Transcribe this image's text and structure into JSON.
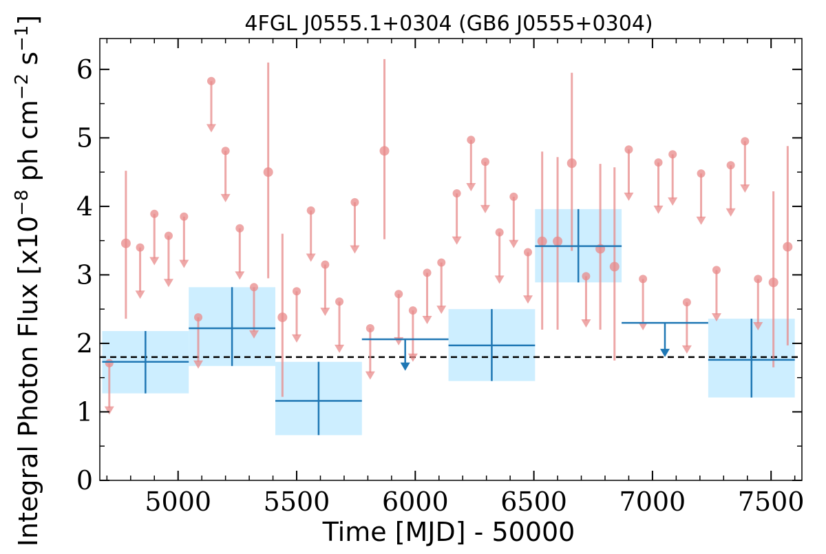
{
  "chart_data": {
    "type": "scatter",
    "title": "4FGL J0555.1+0304 (GB6 J0555+0304)",
    "xlabel": "Time [MJD] - 50000",
    "ylabel_main": "Integral Photon Flux [x10",
    "ylabel_exp1": "−8",
    "ylabel_mid": " ph cm",
    "ylabel_exp2": "−2",
    "ylabel_s": " s",
    "ylabel_exp3": "−1",
    "ylabel_end": "]",
    "xlim": [
      4670,
      7630
    ],
    "ylim": [
      0,
      6.45
    ],
    "xticks": [
      5000,
      5500,
      6000,
      6500,
      7000,
      7500
    ],
    "yticks": [
      0,
      1,
      2,
      3,
      4,
      5,
      6
    ],
    "reference_line": 1.8,
    "colors": {
      "short_bin": "#e88a8a",
      "long_bin": "#1f77b4",
      "long_bin_fill": "#cdeeff",
      "reference_line": "#000000"
    },
    "long_bins": [
      {
        "x0": 4680,
        "x1": 5045,
        "y": 1.73,
        "ylo": 1.27,
        "yhi": 2.18,
        "upper_limit": false
      },
      {
        "x0": 5045,
        "x1": 5410,
        "y": 2.22,
        "ylo": 1.67,
        "yhi": 2.82,
        "upper_limit": false
      },
      {
        "x0": 5410,
        "x1": 5775,
        "y": 1.16,
        "ylo": 0.66,
        "yhi": 1.73,
        "upper_limit": false
      },
      {
        "x0": 5775,
        "x1": 6140,
        "y": 2.06,
        "upper_limit": true,
        "arrow_to": 1.6
      },
      {
        "x0": 6140,
        "x1": 6505,
        "y": 1.97,
        "ylo": 1.45,
        "yhi": 2.5,
        "upper_limit": false
      },
      {
        "x0": 6505,
        "x1": 6870,
        "y": 3.42,
        "ylo": 2.89,
        "yhi": 3.96,
        "upper_limit": false
      },
      {
        "x0": 6870,
        "x1": 7235,
        "y": 2.3,
        "upper_limit": true,
        "arrow_to": 1.8
      },
      {
        "x0": 7235,
        "x1": 7600,
        "y": 1.76,
        "ylo": 1.21,
        "yhi": 2.36,
        "upper_limit": false
      }
    ],
    "short_bins": [
      {
        "x": 4710,
        "y": 1.71,
        "upper_limit": true
      },
      {
        "x": 4780,
        "y": 3.46,
        "ylo": 2.36,
        "yhi": 4.52,
        "upper_limit": false
      },
      {
        "x": 4840,
        "y": 3.4,
        "upper_limit": true
      },
      {
        "x": 4900,
        "y": 3.89,
        "upper_limit": true
      },
      {
        "x": 4960,
        "y": 3.57,
        "upper_limit": true
      },
      {
        "x": 5025,
        "y": 3.85,
        "upper_limit": true
      },
      {
        "x": 5085,
        "y": 2.38,
        "upper_limit": true
      },
      {
        "x": 5140,
        "y": 5.83,
        "upper_limit": true
      },
      {
        "x": 5200,
        "y": 4.81,
        "upper_limit": true
      },
      {
        "x": 5260,
        "y": 3.68,
        "upper_limit": true
      },
      {
        "x": 5320,
        "y": 2.82,
        "upper_limit": true
      },
      {
        "x": 5380,
        "y": 4.5,
        "ylo": 2.95,
        "yhi": 6.1,
        "upper_limit": false
      },
      {
        "x": 5440,
        "y": 2.38,
        "ylo": 1.22,
        "yhi": 3.6,
        "upper_limit": false
      },
      {
        "x": 5500,
        "y": 2.76,
        "upper_limit": true
      },
      {
        "x": 5560,
        "y": 3.94,
        "upper_limit": true
      },
      {
        "x": 5620,
        "y": 3.15,
        "upper_limit": true
      },
      {
        "x": 5680,
        "y": 2.61,
        "upper_limit": true
      },
      {
        "x": 5745,
        "y": 4.06,
        "upper_limit": true
      },
      {
        "x": 5810,
        "y": 2.22,
        "upper_limit": true
      },
      {
        "x": 5870,
        "y": 4.81,
        "ylo": 3.52,
        "yhi": 6.15,
        "upper_limit": false
      },
      {
        "x": 5930,
        "y": 2.72,
        "upper_limit": true
      },
      {
        "x": 5990,
        "y": 2.48,
        "upper_limit": true
      },
      {
        "x": 6050,
        "y": 3.03,
        "upper_limit": true
      },
      {
        "x": 6110,
        "y": 3.18,
        "upper_limit": true
      },
      {
        "x": 6175,
        "y": 4.19,
        "upper_limit": true
      },
      {
        "x": 6235,
        "y": 4.97,
        "upper_limit": true
      },
      {
        "x": 6295,
        "y": 4.65,
        "upper_limit": true
      },
      {
        "x": 6355,
        "y": 3.62,
        "upper_limit": true
      },
      {
        "x": 6415,
        "y": 4.14,
        "upper_limit": true
      },
      {
        "x": 6475,
        "y": 3.33,
        "upper_limit": true
      },
      {
        "x": 6535,
        "y": 3.49,
        "ylo": 2.2,
        "yhi": 4.8,
        "upper_limit": false
      },
      {
        "x": 6600,
        "y": 3.49,
        "ylo": 2.2,
        "yhi": 4.72,
        "upper_limit": false
      },
      {
        "x": 6660,
        "y": 4.63,
        "ylo": 3.35,
        "yhi": 5.95,
        "upper_limit": false
      },
      {
        "x": 6720,
        "y": 2.98,
        "upper_limit": true
      },
      {
        "x": 6780,
        "y": 3.38,
        "ylo": 2.2,
        "yhi": 4.62,
        "upper_limit": false
      },
      {
        "x": 6840,
        "y": 3.12,
        "ylo": 1.75,
        "yhi": 4.57,
        "upper_limit": false
      },
      {
        "x": 6900,
        "y": 4.83,
        "upper_limit": true
      },
      {
        "x": 6960,
        "y": 2.94,
        "upper_limit": true
      },
      {
        "x": 7025,
        "y": 4.64,
        "upper_limit": true
      },
      {
        "x": 7085,
        "y": 4.76,
        "upper_limit": true
      },
      {
        "x": 7145,
        "y": 2.6,
        "upper_limit": true
      },
      {
        "x": 7205,
        "y": 4.48,
        "upper_limit": true
      },
      {
        "x": 7270,
        "y": 3.07,
        "upper_limit": true
      },
      {
        "x": 7330,
        "y": 4.6,
        "upper_limit": true
      },
      {
        "x": 7390,
        "y": 4.95,
        "upper_limit": true
      },
      {
        "x": 7445,
        "y": 2.94,
        "upper_limit": true
      },
      {
        "x": 7510,
        "y": 2.89,
        "ylo": 1.65,
        "yhi": 4.22,
        "upper_limit": false
      },
      {
        "x": 7570,
        "y": 3.41,
        "ylo": 1.97,
        "yhi": 4.88,
        "upper_limit": false
      }
    ]
  }
}
